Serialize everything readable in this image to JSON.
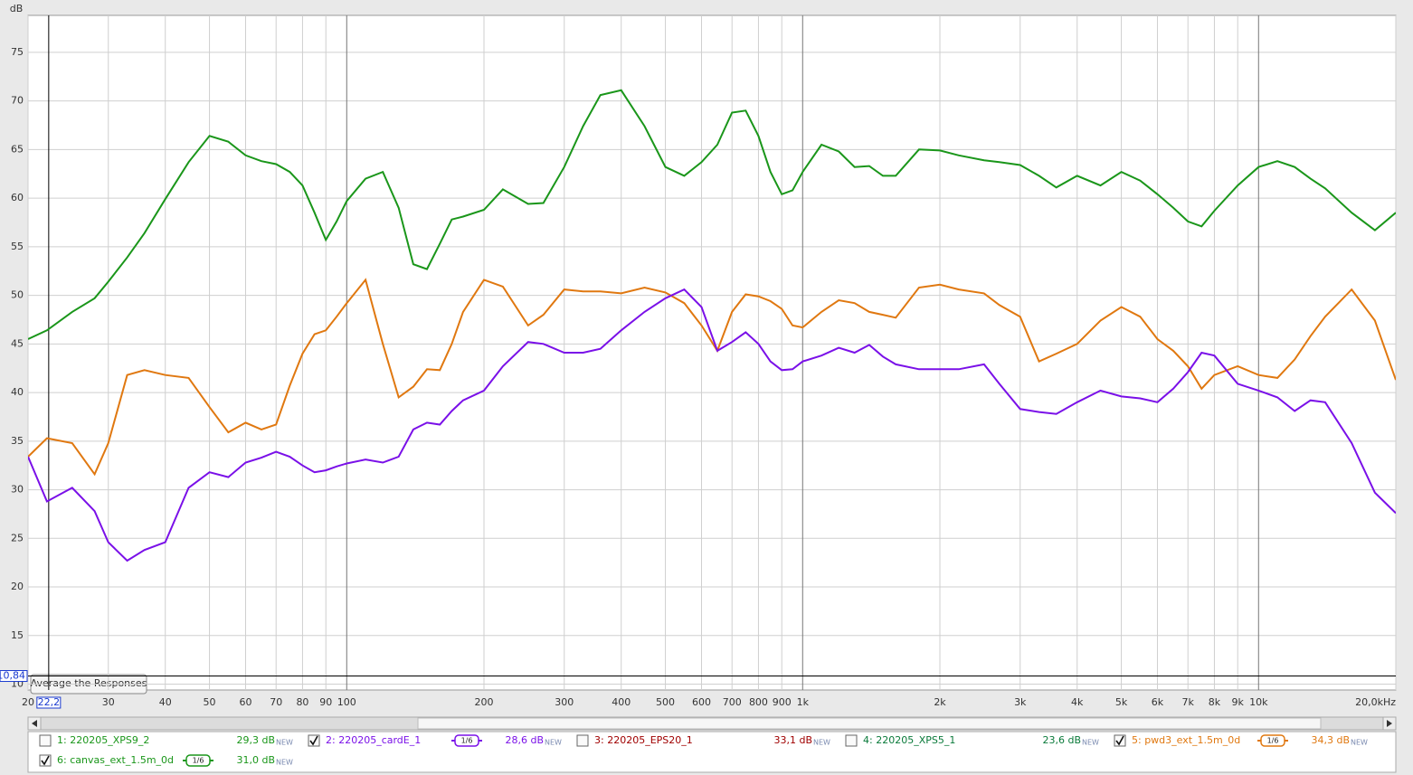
{
  "chart_data": {
    "type": "line",
    "y_label": "dB",
    "xscale": "log",
    "grid": true,
    "xlim": [
      20,
      20000
    ],
    "ylim": [
      9.4,
      78.8
    ],
    "xticks": [
      20,
      30,
      40,
      50,
      60,
      70,
      80,
      90,
      100,
      200,
      300,
      400,
      500,
      600,
      700,
      800,
      900,
      {
        "value": 1000,
        "label": "1k"
      },
      {
        "value": 2000,
        "label": "2k"
      },
      {
        "value": 3000,
        "label": "3k"
      },
      {
        "value": 4000,
        "label": "4k"
      },
      {
        "value": 5000,
        "label": "5k"
      },
      {
        "value": 6000,
        "label": "6k"
      },
      {
        "value": 7000,
        "label": "7k"
      },
      {
        "value": 8000,
        "label": "8k"
      },
      {
        "value": 9000,
        "label": "9k"
      },
      {
        "value": 10000,
        "label": "10k"
      },
      {
        "value": 20000,
        "label": "20,0kHz"
      }
    ],
    "yticks": [
      10,
      15,
      20,
      25,
      30,
      35,
      40,
      45,
      50,
      55,
      60,
      65,
      70,
      75
    ],
    "cursor": {
      "x": {
        "value": 22.2,
        "label": "22,2"
      },
      "y": {
        "value": 10.84,
        "label": "10,84"
      }
    },
    "x": [
      20,
      22,
      25,
      28,
      30,
      33,
      36,
      40,
      45,
      50,
      55,
      60,
      65,
      70,
      75,
      80,
      85,
      90,
      95,
      100,
      110,
      120,
      130,
      140,
      150,
      160,
      170,
      180,
      200,
      220,
      250,
      270,
      300,
      330,
      360,
      400,
      450,
      500,
      550,
      600,
      650,
      700,
      750,
      800,
      850,
      900,
      950,
      1000,
      1100,
      1200,
      1300,
      1400,
      1500,
      1600,
      1800,
      2000,
      2200,
      2500,
      2700,
      3000,
      3300,
      3600,
      4000,
      4500,
      5000,
      5500,
      6000,
      6500,
      7000,
      7500,
      8000,
      9000,
      10000,
      11000,
      12000,
      13000,
      14000,
      16000,
      18000,
      20000
    ],
    "series": [
      {
        "name": "2: 220205_cardE_1",
        "color": "#7a10e8",
        "checked": true,
        "smoothing": "1/6",
        "level": "28,6 dB",
        "values": [
          33.4,
          28.8,
          30.2,
          27.8,
          24.6,
          22.7,
          23.8,
          24.6,
          30.2,
          31.8,
          31.3,
          32.8,
          33.3,
          33.9,
          33.4,
          32.5,
          31.8,
          32.0,
          32.4,
          32.7,
          33.1,
          32.8,
          33.4,
          36.2,
          36.9,
          36.7,
          38.1,
          39.2,
          40.2,
          42.7,
          45.2,
          45.0,
          44.1,
          44.1,
          44.5,
          46.4,
          48.3,
          49.7,
          50.6,
          48.8,
          44.3,
          45.2,
          46.2,
          45.0,
          43.2,
          42.3,
          42.4,
          43.2,
          43.8,
          44.6,
          44.1,
          44.9,
          43.7,
          42.9,
          42.4,
          42.4,
          42.4,
          42.9,
          40.9,
          38.3,
          38.0,
          37.8,
          39.0,
          40.2,
          39.6,
          39.4,
          39.0,
          40.4,
          42.1,
          44.1,
          43.8,
          40.9,
          40.2,
          39.5,
          38.1,
          39.2,
          39.0,
          34.8,
          29.7,
          27.6
        ]
      },
      {
        "name": "5: pwd3_ext_1.5m_0d",
        "color": "#e07810",
        "checked": true,
        "smoothing": "1/6",
        "level": "34,3 dB",
        "values": [
          33.4,
          35.3,
          34.8,
          31.6,
          34.8,
          41.8,
          42.3,
          41.8,
          41.5,
          38.5,
          35.9,
          36.9,
          36.2,
          36.7,
          40.7,
          44.0,
          46.0,
          46.4,
          47.8,
          49.2,
          51.6,
          45.0,
          39.5,
          40.6,
          42.4,
          42.3,
          45.0,
          48.3,
          51.6,
          50.9,
          46.9,
          48.0,
          50.6,
          50.4,
          50.4,
          50.2,
          50.8,
          50.3,
          49.2,
          46.9,
          44.3,
          48.3,
          50.1,
          49.9,
          49.4,
          48.6,
          46.9,
          46.7,
          48.3,
          49.5,
          49.2,
          48.3,
          48.0,
          47.7,
          50.8,
          51.1,
          50.6,
          50.2,
          49.0,
          47.8,
          43.2,
          44.0,
          45.0,
          47.4,
          48.8,
          47.8,
          45.5,
          44.3,
          42.7,
          40.4,
          41.8,
          42.7,
          41.8,
          41.5,
          43.4,
          45.8,
          47.8,
          50.6,
          47.4,
          41.3
        ]
      },
      {
        "name": "6: canvas_ext_1.5m_0d",
        "color": "#1a961a",
        "checked": true,
        "smoothing": "1/6",
        "level": "31,0 dB",
        "values": [
          45.5,
          46.4,
          48.3,
          49.7,
          51.4,
          53.9,
          56.4,
          59.9,
          63.7,
          66.4,
          65.8,
          64.4,
          63.8,
          63.5,
          62.7,
          61.3,
          58.5,
          55.7,
          57.6,
          59.7,
          62.0,
          62.7,
          59.0,
          53.2,
          52.7,
          55.3,
          57.8,
          58.1,
          58.8,
          60.9,
          59.4,
          59.5,
          63.2,
          67.4,
          70.6,
          71.1,
          67.4,
          63.2,
          62.3,
          63.7,
          65.5,
          68.8,
          69.0,
          66.4,
          62.7,
          60.4,
          60.8,
          62.7,
          65.5,
          64.8,
          63.2,
          63.3,
          62.3,
          62.3,
          65.0,
          64.9,
          64.4,
          63.9,
          63.7,
          63.4,
          62.3,
          61.1,
          62.3,
          61.3,
          62.7,
          61.8,
          60.4,
          59.0,
          57.6,
          57.1,
          58.7,
          61.3,
          63.2,
          63.8,
          63.2,
          62.0,
          61.0,
          58.5,
          56.7,
          58.5
        ]
      }
    ]
  },
  "ui": {
    "average_button": "Average the Responses",
    "new_tag": "NEW",
    "hidden_measurements": [
      {
        "name": "1: 220205_XPS9_2",
        "color": "#1a961a",
        "checked": false,
        "level": "29,3 dB"
      },
      {
        "name": "3: 220205_EPS20_1",
        "color": "#a00000",
        "checked": false,
        "level": "33,1 dB"
      },
      {
        "name": "4: 220205_XPS5_1",
        "color": "#0a7a3a",
        "checked": false,
        "level": "23,6 dB"
      }
    ]
  }
}
